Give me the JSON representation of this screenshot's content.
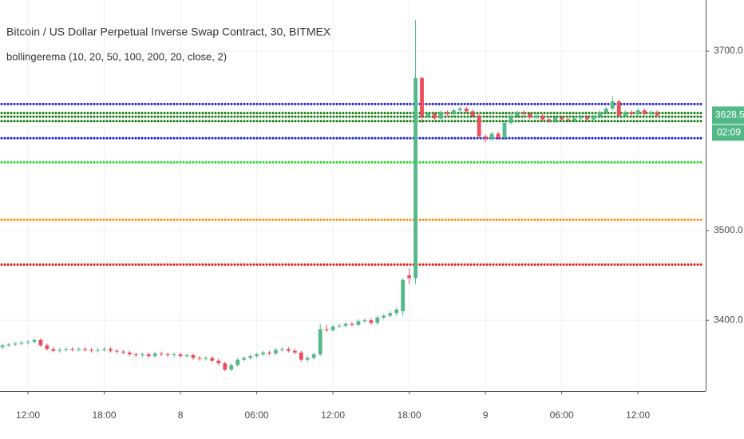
{
  "chart_data": {
    "type": "candlestick",
    "title": "Bitcoin / US Dollar Perpetual Inverse Swap Contract, 30, BITMEX",
    "subtitle": "bollingerema (10, 20, 50, 100, 200, 20, close, 2)",
    "x": [
      0,
      1,
      2,
      3,
      4,
      5,
      6,
      7,
      8,
      9,
      10,
      11,
      12,
      13,
      14,
      15,
      16,
      17,
      18,
      19,
      20,
      21,
      22,
      23,
      24,
      25,
      26,
      27,
      28,
      29,
      30,
      31,
      32,
      33,
      34,
      35,
      36,
      37,
      38,
      39,
      40,
      41,
      42,
      43,
      44,
      45,
      46,
      47,
      48,
      49,
      50,
      51,
      52,
      53,
      54,
      55,
      56,
      57,
      58,
      59,
      60,
      61,
      62,
      63,
      64,
      65,
      66,
      67,
      68,
      69,
      70,
      71,
      72,
      73,
      74,
      75,
      76,
      77,
      78,
      79,
      80,
      81,
      82,
      83,
      84,
      85,
      86,
      87,
      88,
      89,
      90,
      91,
      92,
      93,
      94,
      95,
      96,
      97,
      98,
      99,
      100,
      101,
      102,
      103
    ],
    "open": [
      3370,
      3372,
      3373,
      3374,
      3375,
      3376,
      3378,
      3372,
      3368,
      3366,
      3367,
      3368,
      3367,
      3368,
      3367,
      3366,
      3367,
      3368,
      3366,
      3365,
      3364,
      3362,
      3361,
      3362,
      3360,
      3363,
      3362,
      3361,
      3362,
      3360,
      3361,
      3358,
      3357,
      3358,
      3355,
      3352,
      3345,
      3350,
      3356,
      3358,
      3360,
      3362,
      3364,
      3363,
      3367,
      3368,
      3366,
      3364,
      3356,
      3358,
      3362,
      3390,
      3389,
      3393,
      3394,
      3396,
      3395,
      3399,
      3400,
      3397,
      3403,
      3405,
      3408,
      3410,
      3450,
      3447,
      3670,
      3627,
      3630,
      3625,
      3632,
      3630,
      3634,
      3636,
      3633,
      3628,
      3605,
      3602,
      3608,
      3603,
      3620,
      3628,
      3632,
      3630,
      3626,
      3628,
      3624,
      3622,
      3626,
      3624,
      3623,
      3625,
      3627,
      3624,
      3627,
      3632,
      3636,
      3644,
      3628,
      3632,
      3630,
      3634,
      3630,
      3632
    ],
    "high": [
      3374,
      3375,
      3376,
      3377,
      3378,
      3380,
      3380,
      3374,
      3370,
      3369,
      3370,
      3370,
      3370,
      3370,
      3369,
      3369,
      3370,
      3370,
      3368,
      3367,
      3366,
      3364,
      3364,
      3364,
      3365,
      3365,
      3364,
      3364,
      3364,
      3363,
      3363,
      3360,
      3360,
      3360,
      3357,
      3354,
      3352,
      3358,
      3360,
      3362,
      3364,
      3366,
      3366,
      3369,
      3370,
      3370,
      3368,
      3366,
      3360,
      3364,
      3396,
      3395,
      3395,
      3396,
      3398,
      3398,
      3401,
      3402,
      3402,
      3405,
      3407,
      3410,
      3414,
      3447,
      3458,
      3735,
      3672,
      3632,
      3632,
      3634,
      3634,
      3636,
      3638,
      3638,
      3635,
      3630,
      3607,
      3610,
      3610,
      3622,
      3630,
      3634,
      3634,
      3632,
      3630,
      3630,
      3626,
      3628,
      3628,
      3626,
      3627,
      3629,
      3629,
      3629,
      3634,
      3638,
      3650,
      3646,
      3634,
      3634,
      3636,
      3636,
      3634,
      3634
    ],
    "low": [
      3368,
      3370,
      3371,
      3372,
      3373,
      3374,
      3370,
      3366,
      3364,
      3364,
      3365,
      3365,
      3365,
      3365,
      3364,
      3364,
      3365,
      3364,
      3363,
      3362,
      3360,
      3359,
      3359,
      3358,
      3358,
      3360,
      3359,
      3359,
      3358,
      3358,
      3356,
      3355,
      3355,
      3353,
      3350,
      3343,
      3343,
      3348,
      3354,
      3356,
      3358,
      3360,
      3361,
      3361,
      3365,
      3364,
      3362,
      3354,
      3354,
      3356,
      3360,
      3387,
      3387,
      3391,
      3392,
      3393,
      3393,
      3397,
      3395,
      3395,
      3401,
      3403,
      3405,
      3405,
      3440,
      3440,
      3620,
      3625,
      3623,
      3623,
      3628,
      3628,
      3632,
      3631,
      3626,
      3603,
      3598,
      3600,
      3601,
      3601,
      3618,
      3626,
      3628,
      3624,
      3624,
      3622,
      3620,
      3620,
      3622,
      3621,
      3621,
      3623,
      3622,
      3622,
      3625,
      3630,
      3634,
      3626,
      3626,
      3628,
      3628,
      3628,
      3628,
      3626
    ],
    "close": [
      3372,
      3373,
      3374,
      3375,
      3376,
      3378,
      3372,
      3368,
      3366,
      3367,
      3368,
      3367,
      3368,
      3367,
      3366,
      3367,
      3368,
      3366,
      3365,
      3364,
      3362,
      3361,
      3362,
      3360,
      3363,
      3362,
      3361,
      3362,
      3360,
      3361,
      3358,
      3357,
      3358,
      3355,
      3352,
      3345,
      3350,
      3356,
      3358,
      3360,
      3362,
      3364,
      3363,
      3367,
      3368,
      3366,
      3364,
      3356,
      3358,
      3362,
      3390,
      3389,
      3393,
      3394,
      3396,
      3395,
      3399,
      3400,
      3397,
      3403,
      3405,
      3408,
      3412,
      3445,
      3447,
      3670,
      3627,
      3630,
      3625,
      3632,
      3630,
      3634,
      3636,
      3633,
      3628,
      3605,
      3602,
      3608,
      3603,
      3620,
      3628,
      3632,
      3630,
      3626,
      3628,
      3624,
      3622,
      3626,
      3624,
      3623,
      3625,
      3627,
      3624,
      3627,
      3632,
      3636,
      3644,
      3628,
      3632,
      3630,
      3634,
      3630,
      3632,
      3628.5
    ],
    "up_color": "#53b987",
    "down_color": "#eb4d5c",
    "levels": [
      {
        "value": 3641,
        "color": "#1a1acc"
      },
      {
        "value": 3631,
        "color": "#0a7a0a"
      },
      {
        "value": 3627,
        "color": "#0a7a0a"
      },
      {
        "value": 3622,
        "color": "#0a7a0a"
      },
      {
        "value": 3603,
        "color": "#1a1acc"
      },
      {
        "value": 3576,
        "color": "#22dd22"
      },
      {
        "value": 3512,
        "color": "#ff8c00"
      },
      {
        "value": 3462,
        "color": "#e81818"
      }
    ],
    "last_price": {
      "value": 3628.5,
      "label": "3628.5",
      "countdown": "02:09"
    },
    "xlim": [
      -0.4,
      110.66
    ],
    "ylim": [
      3321,
      3757
    ],
    "xticks": [
      {
        "value": 4,
        "label": "12:00"
      },
      {
        "value": 16,
        "label": "18:00"
      },
      {
        "value": 28,
        "label": "8"
      },
      {
        "value": 40,
        "label": "06:00"
      },
      {
        "value": 52,
        "label": "12:00"
      },
      {
        "value": 64,
        "label": "18:00"
      },
      {
        "value": 76,
        "label": "9"
      },
      {
        "value": 88,
        "label": "06:00"
      },
      {
        "value": 100,
        "label": "12:00"
      }
    ],
    "yticks": [
      {
        "value": 3400,
        "label": "3400.0"
      },
      {
        "value": 3500,
        "label": "3500.0"
      },
      {
        "value": 3700,
        "label": "3700.0"
      }
    ],
    "grid": true
  }
}
